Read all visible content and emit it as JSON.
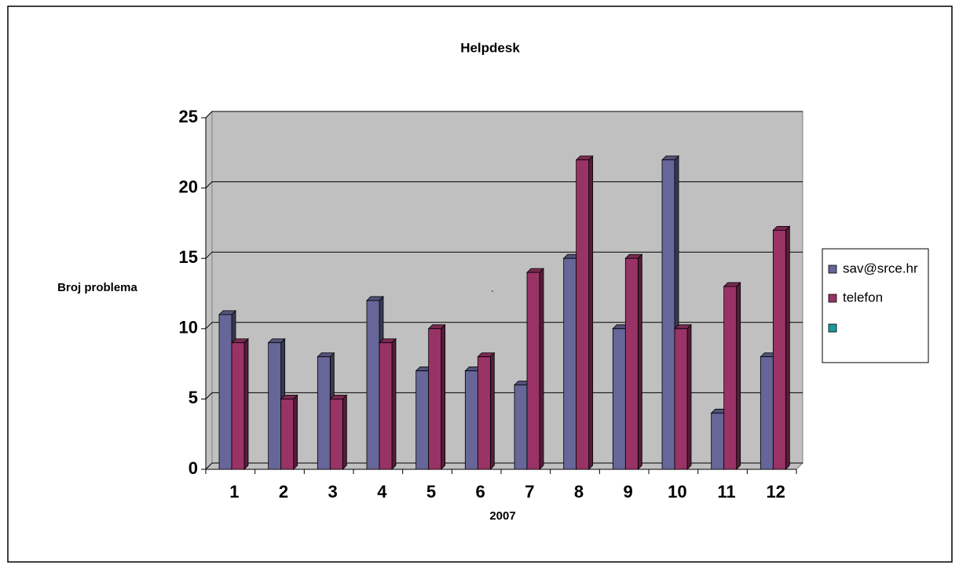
{
  "chart_data": {
    "type": "bar3d",
    "title": "Helpdesk",
    "ylabel": "Broj problema",
    "xlabel": "2007",
    "annotation": "`",
    "categories": [
      "1",
      "2",
      "3",
      "4",
      "5",
      "6",
      "7",
      "8",
      "9",
      "10",
      "11",
      "12"
    ],
    "series": [
      {
        "name": "sav@srce.hr",
        "color": "#666699",
        "values": [
          11,
          9,
          8,
          12,
          7,
          7,
          6,
          15,
          10,
          22,
          4,
          8
        ]
      },
      {
        "name": "telefon",
        "color": "#993366",
        "values": [
          9,
          5,
          5,
          9,
          10,
          8,
          14,
          22,
          15,
          10,
          13,
          17
        ]
      }
    ],
    "ylim": [
      0,
      25
    ],
    "yticks": [
      0,
      5,
      10,
      15,
      20,
      25
    ],
    "grid": true,
    "legend": "right"
  }
}
